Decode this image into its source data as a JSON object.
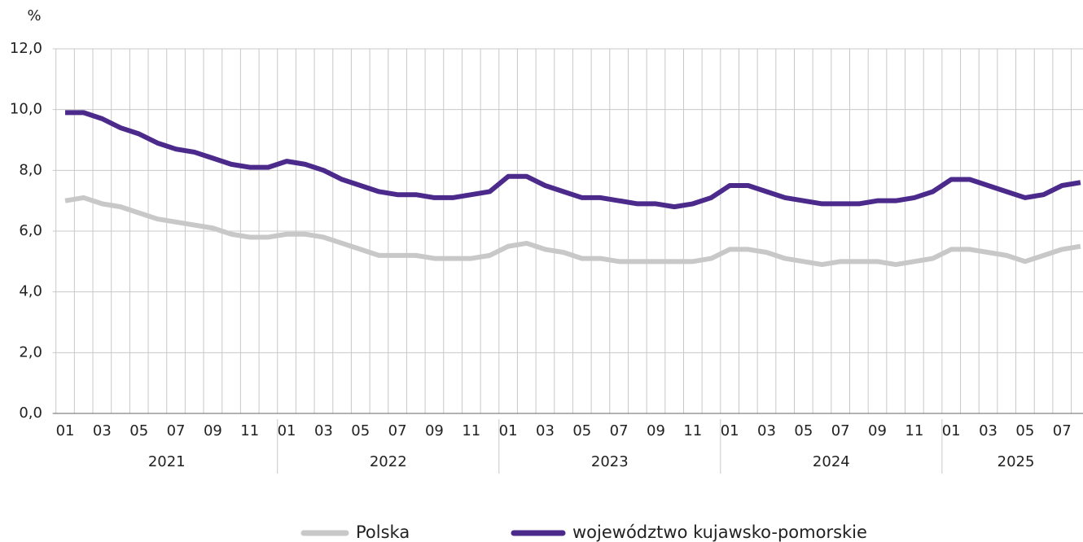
{
  "chart_data": {
    "type": "line",
    "ylabel": "%",
    "categories": [
      "01",
      null,
      "03",
      null,
      "05",
      null,
      "07",
      null,
      "09",
      null,
      "11",
      null,
      "01",
      null,
      "03",
      null,
      "05",
      null,
      "07",
      null,
      "09",
      null,
      "11",
      null,
      "01",
      null,
      "03",
      null,
      "05",
      null,
      "07",
      null,
      "09",
      null,
      "11",
      null,
      "01",
      null,
      "03",
      null,
      "05",
      null,
      "07",
      null,
      "09",
      null,
      "11",
      null,
      "01",
      null,
      "03",
      null,
      "05",
      null,
      "07",
      null
    ],
    "years": [
      "2021",
      "2022",
      "2023",
      "2024",
      "2025"
    ],
    "series": [
      {
        "name": "Polska",
        "color": "#c8c8c8",
        "values": [
          7.0,
          7.1,
          6.9,
          6.8,
          6.6,
          6.4,
          6.3,
          6.2,
          6.1,
          5.9,
          5.8,
          5.8,
          5.9,
          5.9,
          5.8,
          5.6,
          5.4,
          5.2,
          5.2,
          5.2,
          5.1,
          5.1,
          5.1,
          5.2,
          5.5,
          5.6,
          5.4,
          5.3,
          5.1,
          5.1,
          5.0,
          5.0,
          5.0,
          5.0,
          5.0,
          5.1,
          5.4,
          5.4,
          5.3,
          5.1,
          5.0,
          4.9,
          5.0,
          5.0,
          5.0,
          4.9,
          5.0,
          5.1,
          5.4,
          5.4,
          5.3,
          5.2,
          5.0,
          5.2,
          5.4,
          5.5
        ]
      },
      {
        "name": "województwo kujawsko-pomorskie",
        "color": "#4b2a8c",
        "values": [
          9.9,
          9.9,
          9.7,
          9.4,
          9.2,
          8.9,
          8.7,
          8.6,
          8.4,
          8.2,
          8.1,
          8.1,
          8.3,
          8.2,
          8.0,
          7.7,
          7.5,
          7.3,
          7.2,
          7.2,
          7.1,
          7.1,
          7.2,
          7.3,
          7.8,
          7.8,
          7.5,
          7.3,
          7.1,
          7.1,
          7.0,
          6.9,
          6.9,
          6.8,
          6.9,
          7.1,
          7.5,
          7.5,
          7.3,
          7.1,
          7.0,
          6.9,
          6.9,
          6.9,
          7.0,
          7.0,
          7.1,
          7.3,
          7.7,
          7.7,
          7.5,
          7.3,
          7.1,
          7.2,
          7.5,
          7.6
        ]
      }
    ],
    "ylim": [
      0,
      12
    ],
    "yticks": [
      {
        "value": 0,
        "label": "0,0"
      },
      {
        "value": 2,
        "label": "2,0"
      },
      {
        "value": 4,
        "label": "4,0"
      },
      {
        "value": 6,
        "label": "6,0"
      },
      {
        "value": 8,
        "label": "8,0"
      },
      {
        "value": 10,
        "label": "10,0"
      },
      {
        "value": 12,
        "label": "12,0"
      }
    ],
    "grid": true,
    "legend": "bottom"
  }
}
